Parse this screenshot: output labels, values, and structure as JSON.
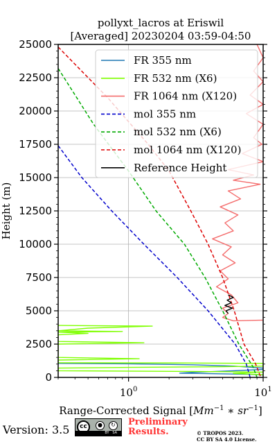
{
  "chart_data": {
    "type": "line",
    "title": "pollyxt_lacros at Eriswil",
    "subtitle": "[Averaged] 20230204 03:59-04:50",
    "xlabel": "Range-Corrected Signal [Mm^{-1}*sr^{-1}]",
    "ylabel": "Height (m)",
    "x_scale": "log",
    "xlim": [
      0.3,
      10
    ],
    "ylim": [
      0,
      25000
    ],
    "x_ticks": [
      1,
      10
    ],
    "x_tick_labels": [
      "10^0",
      "10^1"
    ],
    "y_ticks": [
      0,
      2500,
      5000,
      7500,
      10000,
      12500,
      15000,
      17500,
      20000,
      22500,
      25000
    ],
    "y_tick_labels": [
      "0",
      "2500",
      "5000",
      "7500",
      "10000",
      "12500",
      "15000",
      "17500",
      "20000",
      "22500",
      "25000"
    ],
    "grid": true,
    "legend_position": "top-right",
    "series": [
      {
        "name": "FR 355 nm",
        "color": "#1f77b4",
        "style": "solid",
        "points": [
          [
            0.3,
            1050
          ],
          [
            1.0,
            1020
          ],
          [
            3.0,
            950
          ],
          [
            6.0,
            850
          ],
          [
            10.0,
            700
          ],
          [
            10.0,
            600
          ],
          [
            6.0,
            500
          ],
          [
            3.0,
            380
          ],
          [
            2.4,
            320
          ],
          [
            4.0,
            280
          ],
          [
            8.0,
            230
          ],
          [
            10.0,
            180
          ]
        ]
      },
      {
        "name": "FR 532 nm (X6)",
        "color": "#7fff00",
        "style": "solid",
        "points": [
          [
            0.3,
            3900
          ],
          [
            1.5,
            3850
          ],
          [
            0.5,
            3700
          ],
          [
            0.3,
            3500
          ],
          [
            0.9,
            3450
          ],
          [
            0.3,
            3400
          ],
          [
            0.5,
            3300
          ],
          [
            0.3,
            3200
          ],
          [
            0.3,
            2700
          ],
          [
            1.3,
            2600
          ],
          [
            0.3,
            2500
          ],
          [
            0.3,
            1500
          ],
          [
            1.2,
            1400
          ],
          [
            0.3,
            1300
          ],
          [
            0.3,
            1100
          ],
          [
            3.0,
            1080
          ],
          [
            10.0,
            1050
          ],
          [
            10.0,
            850
          ],
          [
            5.0,
            800
          ],
          [
            1.0,
            750
          ],
          [
            0.3,
            700
          ],
          [
            0.3,
            500
          ],
          [
            3.0,
            450
          ],
          [
            10.0,
            400
          ],
          [
            6.0,
            300
          ],
          [
            10.0,
            200
          ]
        ]
      },
      {
        "name": "FR 1064 nm (X120)",
        "color": "#f46d6d",
        "style": "solid",
        "points": [
          [
            10.0,
            4300
          ],
          [
            6.0,
            4250
          ],
          [
            5.0,
            4500
          ],
          [
            5.5,
            4800
          ],
          [
            5.0,
            5200
          ],
          [
            6.5,
            5600
          ],
          [
            5.8,
            6200
          ],
          [
            4.5,
            6800
          ],
          [
            5.5,
            7400
          ],
          [
            4.8,
            8000
          ],
          [
            6.2,
            8600
          ],
          [
            5.0,
            9200
          ],
          [
            5.8,
            9800
          ],
          [
            4.2,
            10400
          ],
          [
            6.0,
            11000
          ],
          [
            5.2,
            11600
          ],
          [
            6.5,
            12200
          ],
          [
            4.8,
            12800
          ],
          [
            6.8,
            13400
          ],
          [
            5.5,
            14000
          ],
          [
            9.5,
            14500
          ],
          [
            6.0,
            14800
          ],
          [
            8.5,
            15200
          ],
          [
            5.5,
            15600
          ],
          [
            10.0,
            16200
          ],
          [
            7.0,
            16800
          ],
          [
            9.8,
            17500
          ],
          [
            8.5,
            18000
          ],
          [
            10.0,
            19000
          ],
          [
            7.5,
            19800
          ],
          [
            10.0,
            20500
          ],
          [
            8.0,
            21200
          ],
          [
            10.0,
            22200
          ],
          [
            8.5,
            23000
          ],
          [
            10.0,
            24000
          ],
          [
            9.0,
            25000
          ]
        ]
      },
      {
        "name": "mol 355 nm",
        "color": "#0000cc",
        "style": "dashed",
        "points": [
          [
            0.3,
            17400
          ],
          [
            0.45,
            15000
          ],
          [
            0.75,
            12500
          ],
          [
            1.3,
            10000
          ],
          [
            2.3,
            7500
          ],
          [
            3.9,
            5000
          ],
          [
            6.2,
            2500
          ],
          [
            7.5,
            1000
          ],
          [
            8.0,
            0
          ]
        ]
      },
      {
        "name": "mol 532 nm (X6)",
        "color": "#00aa00",
        "style": "dashed",
        "points": [
          [
            0.3,
            23200
          ],
          [
            0.55,
            19000
          ],
          [
            1.0,
            15500
          ],
          [
            1.6,
            12500
          ],
          [
            2.6,
            10000
          ],
          [
            3.7,
            7500
          ],
          [
            5.0,
            5000
          ],
          [
            6.6,
            2500
          ],
          [
            8.4,
            800
          ],
          [
            9.0,
            0
          ]
        ]
      },
      {
        "name": "mol 1064 nm (X120)",
        "color": "#dd0000",
        "style": "dashed",
        "points": [
          [
            0.3,
            24800
          ],
          [
            0.7,
            21000
          ],
          [
            1.4,
            17500
          ],
          [
            2.0,
            15500
          ],
          [
            2.9,
            12500
          ],
          [
            3.9,
            10000
          ],
          [
            5.0,
            7500
          ],
          [
            6.1,
            5000
          ],
          [
            7.2,
            2500
          ],
          [
            8.8,
            1000
          ],
          [
            9.6,
            0
          ]
        ]
      },
      {
        "name": "Reference Height",
        "color": "#000000",
        "style": "solid",
        "points": [
          [
            5.5,
            4800
          ],
          [
            5.3,
            5000
          ],
          [
            5.9,
            5200
          ],
          [
            5.2,
            5400
          ],
          [
            5.8,
            5600
          ],
          [
            5.4,
            5800
          ],
          [
            6.0,
            6000
          ],
          [
            5.5,
            6200
          ]
        ]
      }
    ]
  },
  "footer": {
    "version": "Version: 3.5",
    "preliminary_line1": "Preliminary",
    "preliminary_line2": "Results.",
    "copyright_line1": "© TROPOS 2023.",
    "copyright_line2": "CC BY SA 4.0 License.",
    "license_badge": {
      "cc": "cc",
      "by": "BY",
      "sa": "SA"
    }
  }
}
